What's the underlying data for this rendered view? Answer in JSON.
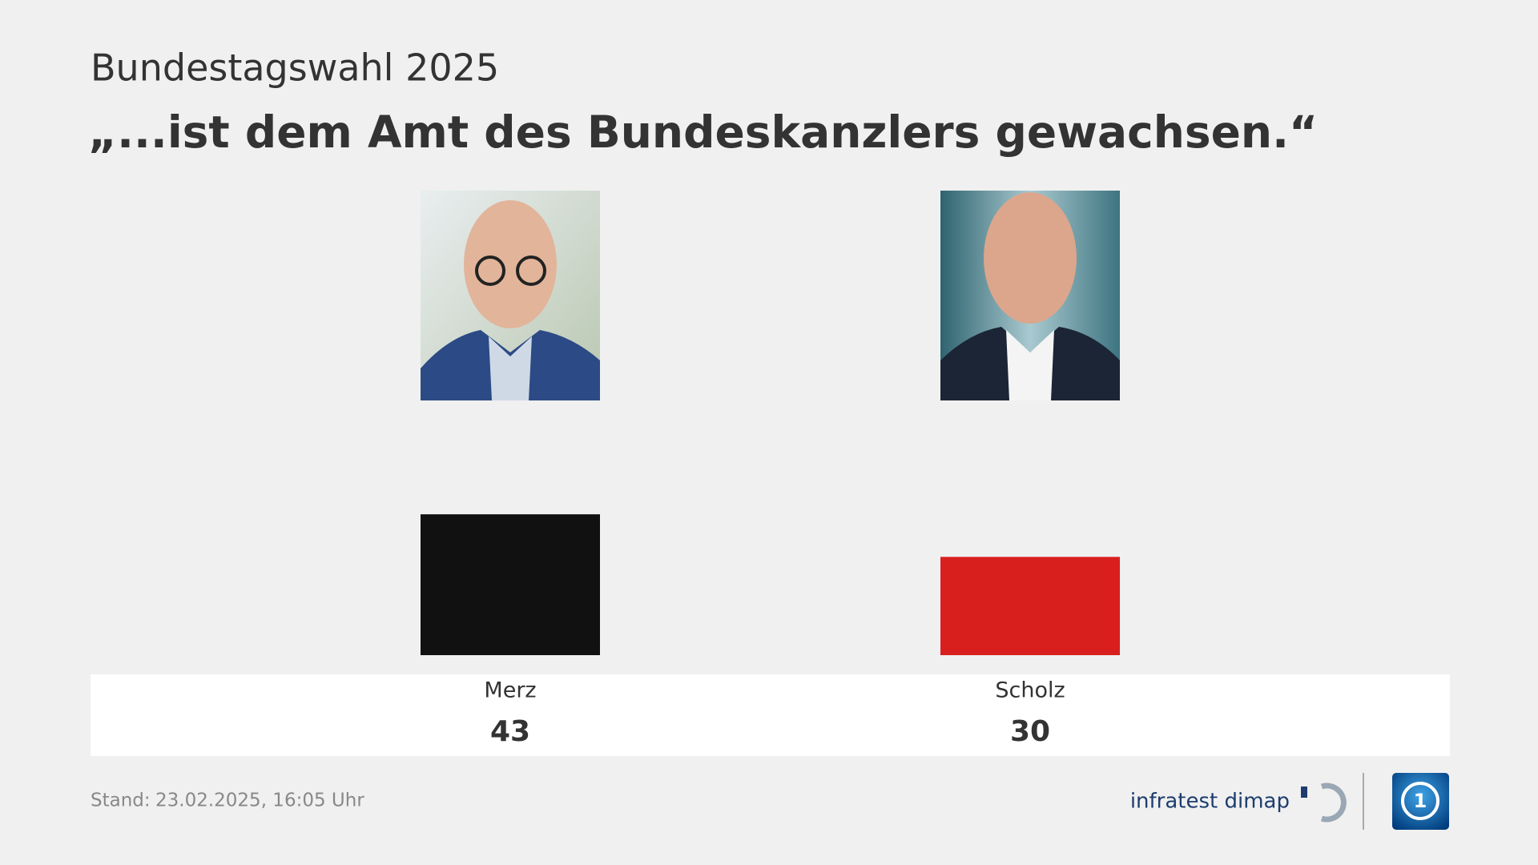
{
  "header": {
    "subtitle": "Bundestagswahl 2025",
    "title": "„...ist dem Amt des Bundeskanzlers gewachsen.“"
  },
  "chart_data": {
    "type": "bar",
    "categories": [
      "Merz",
      "Scholz"
    ],
    "values": [
      43,
      30
    ],
    "colors": [
      "#111111",
      "#d81f1e"
    ]
  },
  "footer": {
    "stand_label": "Stand:",
    "stand_date": "23.02.2025, 16:05 Uhr",
    "brand": "infratest dimap"
  }
}
